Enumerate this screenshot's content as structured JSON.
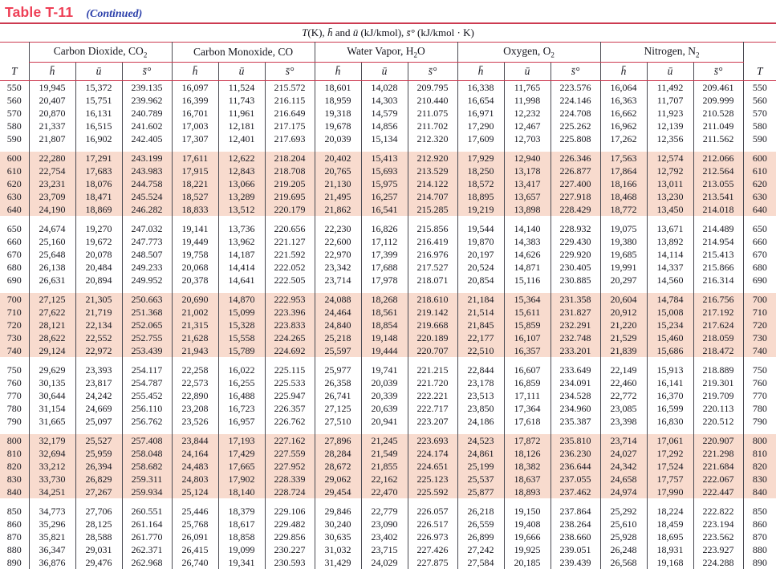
{
  "title": {
    "main": "Table T-11",
    "continued": "(Continued)"
  },
  "subtitle_parts": [
    {
      "text": "T",
      "italic": true
    },
    {
      "text": "(K), ",
      "italic": false
    },
    {
      "text": "h̄",
      "italic": true
    },
    {
      "text": " and ",
      "italic": false
    },
    {
      "text": "ū",
      "italic": true
    },
    {
      "text": " (kJ/kmol), ",
      "italic": false
    },
    {
      "text": "s̄°",
      "italic": true
    },
    {
      "text": " (kJ/kmol · K)",
      "italic": false
    }
  ],
  "columns": {
    "t": "T",
    "h": "h̄",
    "u": "ū",
    "s": "s̄°"
  },
  "groups": [
    {
      "pre": "Carbon Dioxide, CO",
      "sub": "2",
      "post": ""
    },
    {
      "pre": "Carbon Monoxide, CO",
      "sub": "",
      "post": ""
    },
    {
      "pre": "Water Vapor, H",
      "sub": "2",
      "post": "O"
    },
    {
      "pre": "Oxygen, O",
      "sub": "2",
      "post": ""
    },
    {
      "pre": "Nitrogen, N",
      "sub": "2",
      "post": ""
    }
  ],
  "colors": {
    "rule_red": "#cc3a50",
    "title_red": "#ee3e55",
    "continued_blue": "#2b3faa",
    "shade_pink": "#f8dbce",
    "grid_line": "#4a4a52"
  },
  "blocks": [
    {
      "shaded": false,
      "rows": [
        [
          "550",
          "19,945",
          "15,372",
          "239.135",
          "16,097",
          "11,524",
          "215.572",
          "18,601",
          "14,028",
          "209.795",
          "16,338",
          "11,765",
          "223.576",
          "16,064",
          "11,492",
          "209.461"
        ],
        [
          "560",
          "20,407",
          "15,751",
          "239.962",
          "16,399",
          "11,743",
          "216.115",
          "18,959",
          "14,303",
          "210.440",
          "16,654",
          "11,998",
          "224.146",
          "16,363",
          "11,707",
          "209.999"
        ],
        [
          "570",
          "20,870",
          "16,131",
          "240.789",
          "16,701",
          "11,961",
          "216.649",
          "19,318",
          "14,579",
          "211.075",
          "16,971",
          "12,232",
          "224.708",
          "16,662",
          "11,923",
          "210.528"
        ],
        [
          "580",
          "21,337",
          "16,515",
          "241.602",
          "17,003",
          "12,181",
          "217.175",
          "19,678",
          "14,856",
          "211.702",
          "17,290",
          "12,467",
          "225.262",
          "16,962",
          "12,139",
          "211.049"
        ],
        [
          "590",
          "21,807",
          "16,902",
          "242.405",
          "17,307",
          "12,401",
          "217.693",
          "20,039",
          "15,134",
          "212.320",
          "17,609",
          "12,703",
          "225.808",
          "17,262",
          "12,356",
          "211.562"
        ]
      ]
    },
    {
      "shaded": true,
      "rows": [
        [
          "600",
          "22,280",
          "17,291",
          "243.199",
          "17,611",
          "12,622",
          "218.204",
          "20,402",
          "15,413",
          "212.920",
          "17,929",
          "12,940",
          "226.346",
          "17,563",
          "12,574",
          "212.066"
        ],
        [
          "610",
          "22,754",
          "17,683",
          "243.983",
          "17,915",
          "12,843",
          "218.708",
          "20,765",
          "15,693",
          "213.529",
          "18,250",
          "13,178",
          "226.877",
          "17,864",
          "12,792",
          "212.564"
        ],
        [
          "620",
          "23,231",
          "18,076",
          "244.758",
          "18,221",
          "13,066",
          "219.205",
          "21,130",
          "15,975",
          "214.122",
          "18,572",
          "13,417",
          "227.400",
          "18,166",
          "13,011",
          "213.055"
        ],
        [
          "630",
          "23,709",
          "18,471",
          "245.524",
          "18,527",
          "13,289",
          "219.695",
          "21,495",
          "16,257",
          "214.707",
          "18,895",
          "13,657",
          "227.918",
          "18,468",
          "13,230",
          "213.541"
        ],
        [
          "640",
          "24,190",
          "18,869",
          "246.282",
          "18,833",
          "13,512",
          "220.179",
          "21,862",
          "16,541",
          "215.285",
          "19,219",
          "13,898",
          "228.429",
          "18,772",
          "13,450",
          "214.018"
        ]
      ]
    },
    {
      "shaded": false,
      "rows": [
        [
          "650",
          "24,674",
          "19,270",
          "247.032",
          "19,141",
          "13,736",
          "220.656",
          "22,230",
          "16,826",
          "215.856",
          "19,544",
          "14,140",
          "228.932",
          "19,075",
          "13,671",
          "214.489"
        ],
        [
          "660",
          "25,160",
          "19,672",
          "247.773",
          "19,449",
          "13,962",
          "221.127",
          "22,600",
          "17,112",
          "216.419",
          "19,870",
          "14,383",
          "229.430",
          "19,380",
          "13,892",
          "214.954"
        ],
        [
          "670",
          "25,648",
          "20,078",
          "248.507",
          "19,758",
          "14,187",
          "221.592",
          "22,970",
          "17,399",
          "216.976",
          "20,197",
          "14,626",
          "229.920",
          "19,685",
          "14,114",
          "215.413"
        ],
        [
          "680",
          "26,138",
          "20,484",
          "249.233",
          "20,068",
          "14,414",
          "222.052",
          "23,342",
          "17,688",
          "217.527",
          "20,524",
          "14,871",
          "230.405",
          "19,991",
          "14,337",
          "215.866"
        ],
        [
          "690",
          "26,631",
          "20,894",
          "249.952",
          "20,378",
          "14,641",
          "222.505",
          "23,714",
          "17,978",
          "218.071",
          "20,854",
          "15,116",
          "230.885",
          "20,297",
          "14,560",
          "216.314"
        ]
      ]
    },
    {
      "shaded": true,
      "rows": [
        [
          "700",
          "27,125",
          "21,305",
          "250.663",
          "20,690",
          "14,870",
          "222.953",
          "24,088",
          "18,268",
          "218.610",
          "21,184",
          "15,364",
          "231.358",
          "20,604",
          "14,784",
          "216.756"
        ],
        [
          "710",
          "27,622",
          "21,719",
          "251.368",
          "21,002",
          "15,099",
          "223.396",
          "24,464",
          "18,561",
          "219.142",
          "21,514",
          "15,611",
          "231.827",
          "20,912",
          "15,008",
          "217.192"
        ],
        [
          "720",
          "28,121",
          "22,134",
          "252.065",
          "21,315",
          "15,328",
          "223.833",
          "24,840",
          "18,854",
          "219.668",
          "21,845",
          "15,859",
          "232.291",
          "21,220",
          "15,234",
          "217.624"
        ],
        [
          "730",
          "28,622",
          "22,552",
          "252.755",
          "21,628",
          "15,558",
          "224.265",
          "25,218",
          "19,148",
          "220.189",
          "22,177",
          "16,107",
          "232.748",
          "21,529",
          "15,460",
          "218.059"
        ],
        [
          "740",
          "29,124",
          "22,972",
          "253.439",
          "21,943",
          "15,789",
          "224.692",
          "25,597",
          "19,444",
          "220.707",
          "22,510",
          "16,357",
          "233.201",
          "21,839",
          "15,686",
          "218.472"
        ]
      ]
    },
    {
      "shaded": false,
      "rows": [
        [
          "750",
          "29,629",
          "23,393",
          "254.117",
          "22,258",
          "16,022",
          "225.115",
          "25,977",
          "19,741",
          "221.215",
          "22,844",
          "16,607",
          "233.649",
          "22,149",
          "15,913",
          "218.889"
        ],
        [
          "760",
          "30,135",
          "23,817",
          "254.787",
          "22,573",
          "16,255",
          "225.533",
          "26,358",
          "20,039",
          "221.720",
          "23,178",
          "16,859",
          "234.091",
          "22,460",
          "16,141",
          "219.301"
        ],
        [
          "770",
          "30,644",
          "24,242",
          "255.452",
          "22,890",
          "16,488",
          "225.947",
          "26,741",
          "20,339",
          "222.221",
          "23,513",
          "17,111",
          "234.528",
          "22,772",
          "16,370",
          "219.709"
        ],
        [
          "780",
          "31,154",
          "24,669",
          "256.110",
          "23,208",
          "16,723",
          "226.357",
          "27,125",
          "20,639",
          "222.717",
          "23,850",
          "17,364",
          "234.960",
          "23,085",
          "16,599",
          "220.113"
        ],
        [
          "790",
          "31,665",
          "25,097",
          "256.762",
          "23,526",
          "16,957",
          "226.762",
          "27,510",
          "20,941",
          "223.207",
          "24,186",
          "17,618",
          "235.387",
          "23,398",
          "16,830",
          "220.512"
        ]
      ]
    },
    {
      "shaded": true,
      "rows": [
        [
          "800",
          "32,179",
          "25,527",
          "257.408",
          "23,844",
          "17,193",
          "227.162",
          "27,896",
          "21,245",
          "223.693",
          "24,523",
          "17,872",
          "235.810",
          "23,714",
          "17,061",
          "220.907"
        ],
        [
          "810",
          "32,694",
          "25,959",
          "258.048",
          "24,164",
          "17,429",
          "227.559",
          "28,284",
          "21,549",
          "224.174",
          "24,861",
          "18,126",
          "236.230",
          "24,027",
          "17,292",
          "221.298"
        ],
        [
          "820",
          "33,212",
          "26,394",
          "258.682",
          "24,483",
          "17,665",
          "227.952",
          "28,672",
          "21,855",
          "224.651",
          "25,199",
          "18,382",
          "236.644",
          "24,342",
          "17,524",
          "221.684"
        ],
        [
          "830",
          "33,730",
          "26,829",
          "259.311",
          "24,803",
          "17,902",
          "228.339",
          "29,062",
          "22,162",
          "225.123",
          "25,537",
          "18,637",
          "237.055",
          "24,658",
          "17,757",
          "222.067"
        ],
        [
          "840",
          "34,251",
          "27,267",
          "259.934",
          "25,124",
          "18,140",
          "228.724",
          "29,454",
          "22,470",
          "225.592",
          "25,877",
          "18,893",
          "237.462",
          "24,974",
          "17,990",
          "222.447"
        ]
      ]
    },
    {
      "shaded": false,
      "rows": [
        [
          "850",
          "34,773",
          "27,706",
          "260.551",
          "25,446",
          "18,379",
          "229.106",
          "29,846",
          "22,779",
          "226.057",
          "26,218",
          "19,150",
          "237.864",
          "25,292",
          "18,224",
          "222.822"
        ],
        [
          "860",
          "35,296",
          "28,125",
          "261.164",
          "25,768",
          "18,617",
          "229.482",
          "30,240",
          "23,090",
          "226.517",
          "26,559",
          "19,408",
          "238.264",
          "25,610",
          "18,459",
          "223.194"
        ],
        [
          "870",
          "35,821",
          "28,588",
          "261.770",
          "26,091",
          "18,858",
          "229.856",
          "30,635",
          "23,402",
          "226.973",
          "26,899",
          "19,666",
          "238.660",
          "25,928",
          "18,695",
          "223.562"
        ],
        [
          "880",
          "36,347",
          "29,031",
          "262.371",
          "26,415",
          "19,099",
          "230.227",
          "31,032",
          "23,715",
          "227.426",
          "27,242",
          "19,925",
          "239.051",
          "26,248",
          "18,931",
          "223.927"
        ],
        [
          "890",
          "36,876",
          "29,476",
          "262.968",
          "26,740",
          "19,341",
          "230.593",
          "31,429",
          "24,029",
          "227.875",
          "27,584",
          "20,185",
          "239.439",
          "26,568",
          "19,168",
          "224.288"
        ]
      ]
    }
  ]
}
